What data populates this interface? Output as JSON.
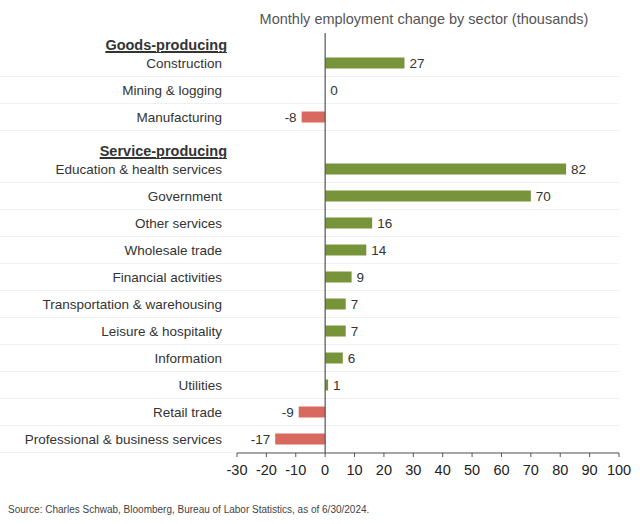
{
  "chart_data": {
    "type": "bar",
    "orientation": "horizontal",
    "title": "Monthly employment change by sector (thousands)",
    "groups": [
      {
        "label": "Goods-producing",
        "count": 3
      },
      {
        "label": "Service-producing",
        "count": 11
      }
    ],
    "categories": [
      "Construction",
      "Mining & logging",
      "Manufacturing",
      "Education & health services",
      "Government",
      "Other services",
      "Wholesale trade",
      "Financial activities",
      "Transportation & warehousing",
      "Leisure & hospitality",
      "Information",
      "Utilities",
      "Retail trade",
      "Professional & business services"
    ],
    "values": [
      27,
      0,
      -8,
      82,
      70,
      16,
      14,
      9,
      7,
      7,
      6,
      1,
      -9,
      -17
    ],
    "colors": [
      "#78943a",
      "#78943a",
      "#d9695f",
      "#78943a",
      "#78943a",
      "#78943a",
      "#78943a",
      "#78943a",
      "#78943a",
      "#78943a",
      "#78943a",
      "#78943a",
      "#d9695f",
      "#d9695f"
    ],
    "xlim": [
      -30,
      100
    ],
    "xticks": [
      -30,
      -20,
      -10,
      0,
      10,
      20,
      30,
      40,
      50,
      60,
      70,
      80,
      90,
      100
    ],
    "data_labels": true,
    "grid": false,
    "source": "Source: Charles Schwab, Bloomberg, Bureau of Labor Statistics, as of 6/30/2024."
  }
}
